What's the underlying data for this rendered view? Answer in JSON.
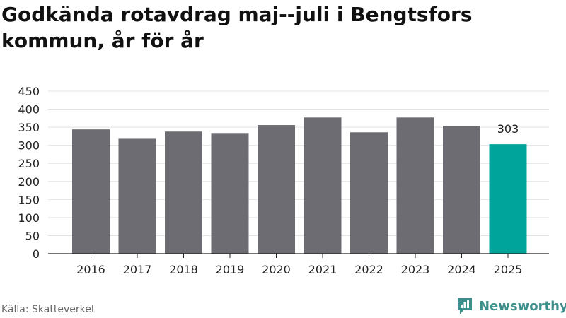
{
  "title": "Godkända rotavdrag maj--juli i Bengtsfors kommun, år för år",
  "source": "Källa: Skatteverket",
  "brand": {
    "name": "Newsworthy",
    "icon": "newsworthy-logo-icon"
  },
  "colors": {
    "bar": "#6d6c72",
    "highlight": "#00a49a",
    "grid": "#e3e3e3",
    "axis": "#222222",
    "text": "#222222"
  },
  "chart_data": {
    "type": "bar",
    "categories": [
      "2016",
      "2017",
      "2018",
      "2019",
      "2020",
      "2021",
      "2022",
      "2023",
      "2024",
      "2025"
    ],
    "values": [
      344,
      320,
      338,
      334,
      356,
      377,
      336,
      377,
      354,
      303
    ],
    "highlight_index": 9,
    "data_labels": [
      {
        "index": 9,
        "text": "303"
      }
    ],
    "yticks": [
      0,
      50,
      100,
      150,
      200,
      250,
      300,
      350,
      400,
      450
    ],
    "ylim": [
      0,
      450
    ],
    "grid": true,
    "legend": "none"
  }
}
